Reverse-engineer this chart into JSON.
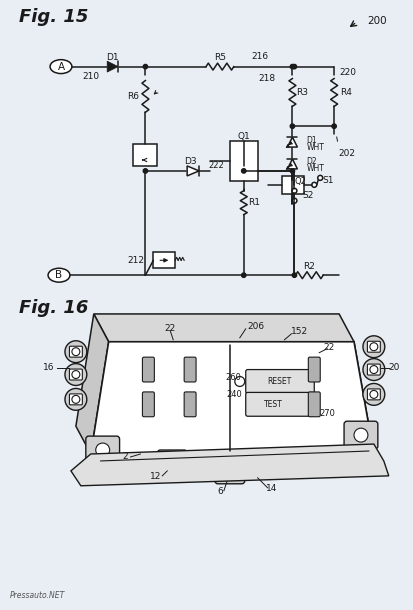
{
  "fig15_label": "Fig. 15",
  "fig16_label": "Fig. 16",
  "line_color": "#1a1a1a",
  "watermark": "Pressauto.NET",
  "bg_color": "#e8eef4"
}
